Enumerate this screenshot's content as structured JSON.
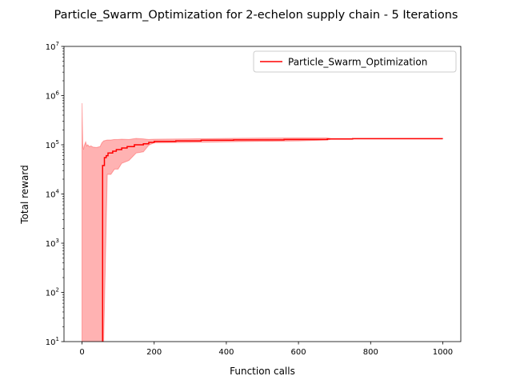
{
  "chart_data": {
    "type": "line",
    "title": "Particle_Swarm_Optimization for 2-echelon supply chain - 5 Iterations",
    "xlabel": "Function calls",
    "ylabel": "Total reward",
    "xlim": [
      -50,
      1050
    ],
    "ylim": [
      10,
      10000000
    ],
    "yscale": "log",
    "x_ticks": [
      0,
      200,
      400,
      600,
      800,
      1000
    ],
    "x_tick_labels": [
      "0",
      "200",
      "400",
      "600",
      "800",
      "1000"
    ],
    "y_ticks": [
      10,
      100,
      1000,
      10000,
      100000,
      1000000,
      10000000
    ],
    "y_tick_labels": [
      {
        "base": "10",
        "exp": "1"
      },
      {
        "base": "10",
        "exp": "2"
      },
      {
        "base": "10",
        "exp": "3"
      },
      {
        "base": "10",
        "exp": "4"
      },
      {
        "base": "10",
        "exp": "5"
      },
      {
        "base": "10",
        "exp": "6"
      },
      {
        "base": "10",
        "exp": "7"
      }
    ],
    "grid": false,
    "legend": {
      "position": "top-right"
    },
    "series": [
      {
        "name": "Particle_Swarm_Optimization",
        "color": "#ff0000",
        "band_color": "#ff0000",
        "x": [
          57,
          57,
          62,
          62,
          67,
          67,
          72,
          72,
          85,
          85,
          95,
          95,
          110,
          110,
          125,
          125,
          145,
          145,
          170,
          170,
          185,
          185,
          200,
          200,
          260,
          260,
          330,
          330,
          420,
          420,
          560,
          560,
          680,
          680,
          750,
          750,
          1000
        ],
        "y": [
          10,
          38000,
          38000,
          55000,
          55000,
          60000,
          60000,
          68000,
          68000,
          74000,
          74000,
          80000,
          80000,
          86000,
          86000,
          92000,
          92000,
          100000,
          100000,
          105000,
          105000,
          112000,
          112000,
          117000,
          117000,
          120000,
          120000,
          124000,
          124000,
          126000,
          126000,
          128000,
          128000,
          131000,
          131000,
          133000,
          133000
        ]
      }
    ],
    "band": {
      "x": [
        0,
        0,
        2,
        4,
        7,
        10,
        13,
        16,
        20,
        25,
        30,
        40,
        50,
        55,
        60,
        70,
        80,
        90,
        100,
        110,
        130,
        150,
        170,
        185,
        200,
        300,
        400,
        500,
        600,
        680,
        690,
        750,
        1000
      ],
      "upper": [
        10,
        700000,
        100000,
        80000,
        100000,
        115000,
        95000,
        100000,
        92000,
        95000,
        90000,
        88000,
        92000,
        110000,
        120000,
        125000,
        125000,
        128000,
        128000,
        130000,
        128000,
        135000,
        132000,
        128000,
        130000,
        132000,
        135000,
        137000,
        138000,
        138000,
        135000,
        135000,
        135000
      ],
      "lower": [
        10,
        10,
        10,
        10,
        10,
        10,
        10,
        10,
        10,
        10,
        10,
        10,
        10,
        10,
        10,
        25000,
        25000,
        32000,
        32000,
        42000,
        48000,
        68000,
        72000,
        98000,
        110000,
        112000,
        115000,
        118000,
        120000,
        125000,
        130000,
        133000,
        133000
      ]
    }
  }
}
